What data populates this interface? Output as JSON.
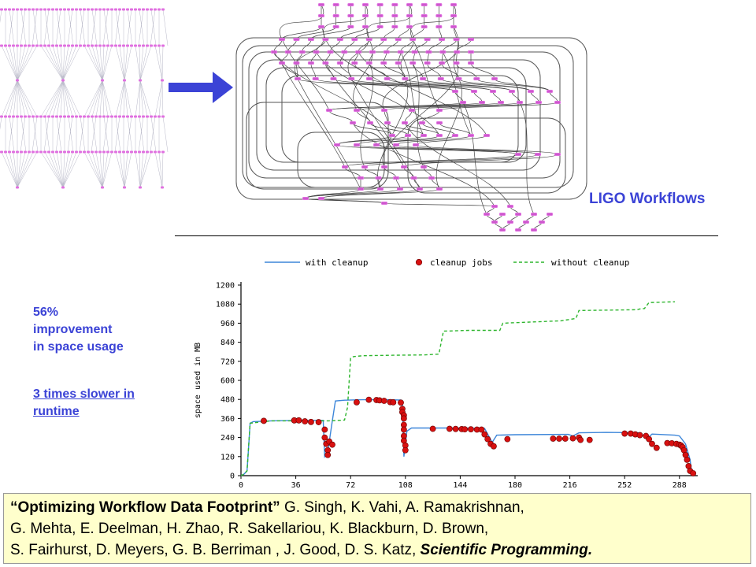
{
  "slide": {
    "figure_title": "LIGO Workflows",
    "improvement_lines": [
      "56%",
      "improvement",
      "in space usage"
    ],
    "runtime_lines": [
      "3 times slower in",
      "runtime"
    ],
    "colors": {
      "accent_blue": "#3b43d6",
      "node_magenta": "#e070e0",
      "citation_bg": "#ffffcc"
    }
  },
  "chart_data": {
    "type": "line",
    "ylabel": "space used in MB",
    "xlabel": "",
    "x_ticks": [
      0,
      36,
      72,
      108,
      144,
      180,
      216,
      252,
      288
    ],
    "y_ticks": [
      0,
      120,
      240,
      360,
      480,
      600,
      720,
      840,
      960,
      1080,
      1200
    ],
    "xlim": [
      0,
      300
    ],
    "ylim": [
      0,
      1200
    ],
    "legend": [
      "with cleanup",
      "cleanup jobs",
      "without cleanup"
    ],
    "legend_placement": "top",
    "series": [
      {
        "name": "with cleanup",
        "color": "#3d86d9",
        "points": [
          [
            0,
            0
          ],
          [
            2,
            10
          ],
          [
            4,
            30
          ],
          [
            5,
            180
          ],
          [
            6,
            330
          ],
          [
            8,
            340
          ],
          [
            20,
            345
          ],
          [
            40,
            348
          ],
          [
            54,
            348
          ],
          [
            55,
            120
          ],
          [
            57,
            150
          ],
          [
            60,
            345
          ],
          [
            62,
            470
          ],
          [
            68,
            475
          ],
          [
            80,
            478
          ],
          [
            95,
            478
          ],
          [
            105,
            476
          ],
          [
            106,
            470
          ],
          [
            107,
            120
          ],
          [
            109,
            280
          ],
          [
            112,
            300
          ],
          [
            140,
            300
          ],
          [
            160,
            298
          ],
          [
            165,
            210
          ],
          [
            168,
            255
          ],
          [
            180,
            258
          ],
          [
            215,
            260
          ],
          [
            218,
            250
          ],
          [
            222,
            270
          ],
          [
            240,
            272
          ],
          [
            262,
            270
          ],
          [
            264,
            255
          ],
          [
            268,
            245
          ],
          [
            270,
            262
          ],
          [
            285,
            255
          ],
          [
            288,
            250
          ],
          [
            292,
            200
          ],
          [
            295,
            100
          ],
          [
            296,
            20
          ],
          [
            298,
            10
          ]
        ]
      },
      {
        "name": "without cleanup",
        "color": "#2db52d",
        "points": [
          [
            0,
            0
          ],
          [
            2,
            10
          ],
          [
            4,
            30
          ],
          [
            6,
            330
          ],
          [
            20,
            345
          ],
          [
            40,
            345
          ],
          [
            58,
            345
          ],
          [
            68,
            350
          ],
          [
            70,
            430
          ],
          [
            72,
            740
          ],
          [
            74,
            750
          ],
          [
            80,
            755
          ],
          [
            100,
            758
          ],
          [
            120,
            760
          ],
          [
            130,
            765
          ],
          [
            133,
            910
          ],
          [
            150,
            915
          ],
          [
            170,
            915
          ],
          [
            172,
            960
          ],
          [
            210,
            975
          ],
          [
            220,
            990
          ],
          [
            222,
            1040
          ],
          [
            260,
            1045
          ],
          [
            262,
            1050
          ],
          [
            265,
            1052
          ],
          [
            268,
            1090
          ],
          [
            285,
            1095
          ]
        ]
      }
    ],
    "cleanup_jobs": [
      [
        15,
        345
      ],
      [
        35,
        348
      ],
      [
        38,
        348
      ],
      [
        42,
        342
      ],
      [
        46,
        338
      ],
      [
        51,
        337
      ],
      [
        55,
        290
      ],
      [
        55,
        240
      ],
      [
        56,
        200
      ],
      [
        57,
        160
      ],
      [
        57,
        130
      ],
      [
        58,
        215
      ],
      [
        60,
        195
      ],
      [
        76,
        462
      ],
      [
        84,
        478
      ],
      [
        89,
        476
      ],
      [
        91,
        474
      ],
      [
        94,
        471
      ],
      [
        98,
        463
      ],
      [
        100,
        462
      ],
      [
        105,
        460
      ],
      [
        106,
        420
      ],
      [
        106,
        400
      ],
      [
        107,
        380
      ],
      [
        107,
        360
      ],
      [
        107,
        320
      ],
      [
        107,
        290
      ],
      [
        107,
        250
      ],
      [
        107,
        220
      ],
      [
        108,
        190
      ],
      [
        108,
        160
      ],
      [
        126,
        295
      ],
      [
        137,
        295
      ],
      [
        141,
        294
      ],
      [
        145,
        293
      ],
      [
        147,
        292
      ],
      [
        151,
        292
      ],
      [
        155,
        290
      ],
      [
        158,
        290
      ],
      [
        160,
        260
      ],
      [
        162,
        230
      ],
      [
        164,
        200
      ],
      [
        166,
        185
      ],
      [
        175,
        230
      ],
      [
        205,
        233
      ],
      [
        209,
        233
      ],
      [
        213,
        233
      ],
      [
        218,
        235
      ],
      [
        222,
        240
      ],
      [
        223,
        225
      ],
      [
        229,
        225
      ],
      [
        252,
        265
      ],
      [
        256,
        265
      ],
      [
        259,
        260
      ],
      [
        262,
        255
      ],
      [
        266,
        250
      ],
      [
        268,
        230
      ],
      [
        270,
        200
      ],
      [
        273,
        175
      ],
      [
        280,
        205
      ],
      [
        283,
        204
      ],
      [
        286,
        200
      ],
      [
        288,
        195
      ],
      [
        289,
        190
      ],
      [
        290,
        180
      ],
      [
        291,
        160
      ],
      [
        292,
        130
      ],
      [
        293,
        100
      ],
      [
        294,
        60
      ],
      [
        295,
        30
      ],
      [
        297,
        15
      ]
    ]
  },
  "citation": {
    "lines": [
      [
        {
          "t": "“Optimizing Workflow Data Footprint”",
          "s": "b"
        },
        {
          "t": " G. Singh, K. Vahi, A. Ramakrishnan,",
          "s": ""
        }
      ],
      [
        {
          "t": "G. Mehta, E. Deelman, H. Zhao, R. Sakellariou, K. Blackburn, D. Brown,",
          "s": ""
        }
      ],
      [
        {
          "t": "S. Fairhurst, D. Meyers, G. B. Berriman , J. Good, D. S. Katz, ",
          "s": ""
        },
        {
          "t": "Scientific Programming.",
          "s": "bi"
        }
      ]
    ]
  }
}
